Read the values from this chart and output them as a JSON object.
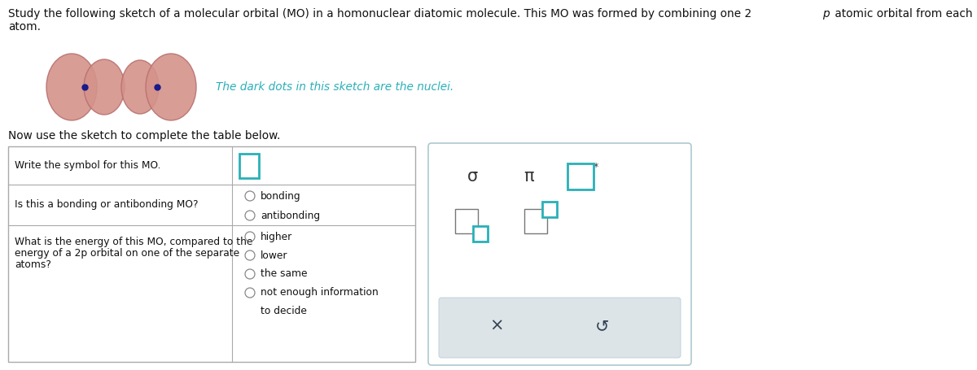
{
  "title_line1": "Study the following sketch of a molecular orbital (MO) in a homonuclear diatomic molecule. This MO was formed by combining one 2",
  "title_italic": "p",
  "title_line1_end": " atomic orbital from each",
  "title_line2": "atom.",
  "nuclei_label": "The dark dots in this sketch are the nuclei.",
  "sketch_label": "Now use the sketch to complete the table below.",
  "table_row1_left": "Write the symbol for this MO.",
  "table_row2_left": "Is this a bonding or antibonding MO?",
  "table_row3_left": "What is the energy of this MO, compared to the\nenergy of a 2p orbital on one of the separate\natoms?",
  "table_row2_options": [
    "bonding",
    "antibonding"
  ],
  "table_row3_options": [
    "higher",
    "lower",
    "the same",
    "not enough information\nto decide"
  ],
  "orbital_color_face": "#d4928a",
  "orbital_color_edge": "#b87070",
  "nucleus_color": "#1a1a8a",
  "teal_color": "#2ab0b8",
  "panel_border": "#aec8d0",
  "table_border": "#aaaaaa",
  "text_color": "#111111",
  "sigma_text": "σ",
  "pi_text": "π",
  "background": "#ffffff",
  "gray_btn_bg": "#dde4e8"
}
